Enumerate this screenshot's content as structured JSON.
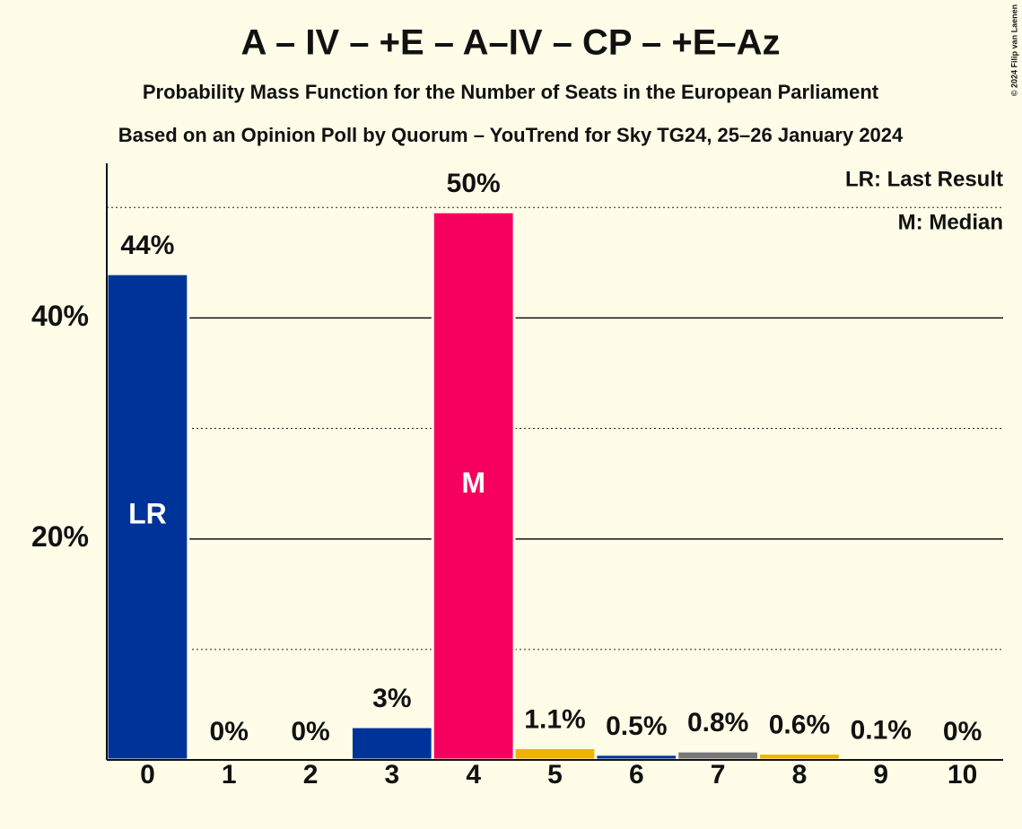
{
  "chart_data": {
    "type": "bar",
    "title": "A – IV – +E – A–IV – CP – +E–Az",
    "subtitle": "Probability Mass Function for the Number of Seats in the European Parliament",
    "subtitle2": "Based on an Opinion Poll by Quorum – YouTrend for Sky TG24, 25–26 January 2024",
    "copyright": "© 2024 Filip van Laenen",
    "categories": [
      "0",
      "1",
      "2",
      "3",
      "4",
      "5",
      "6",
      "7",
      "8",
      "9",
      "10"
    ],
    "values": [
      44,
      0,
      0,
      3,
      49.6,
      1.1,
      0.5,
      0.8,
      0.6,
      0.1,
      0
    ],
    "value_labels": [
      "44%",
      "0%",
      "0%",
      "3%",
      "50%",
      "1.1%",
      "0.5%",
      "0.8%",
      "0.6%",
      "0.1%",
      "0%"
    ],
    "colors": [
      "#003399",
      "#003399",
      "#003399",
      "#003399",
      "#f5005f",
      "#f0b400",
      "#003399",
      "#777777",
      "#f0b400",
      "#003399",
      "#003399"
    ],
    "bar_annotations": [
      {
        "index": 0,
        "text": "LR"
      },
      {
        "index": 4,
        "text": "M"
      }
    ],
    "legend": [
      "LR: Last Result",
      "M: Median"
    ],
    "ylim": [
      0,
      54
    ],
    "yticks": [
      {
        "value": 20,
        "label": "20%"
      },
      {
        "value": 40,
        "label": "40%"
      }
    ],
    "minor_gridlines": [
      10,
      30,
      50
    ],
    "grid": true
  }
}
